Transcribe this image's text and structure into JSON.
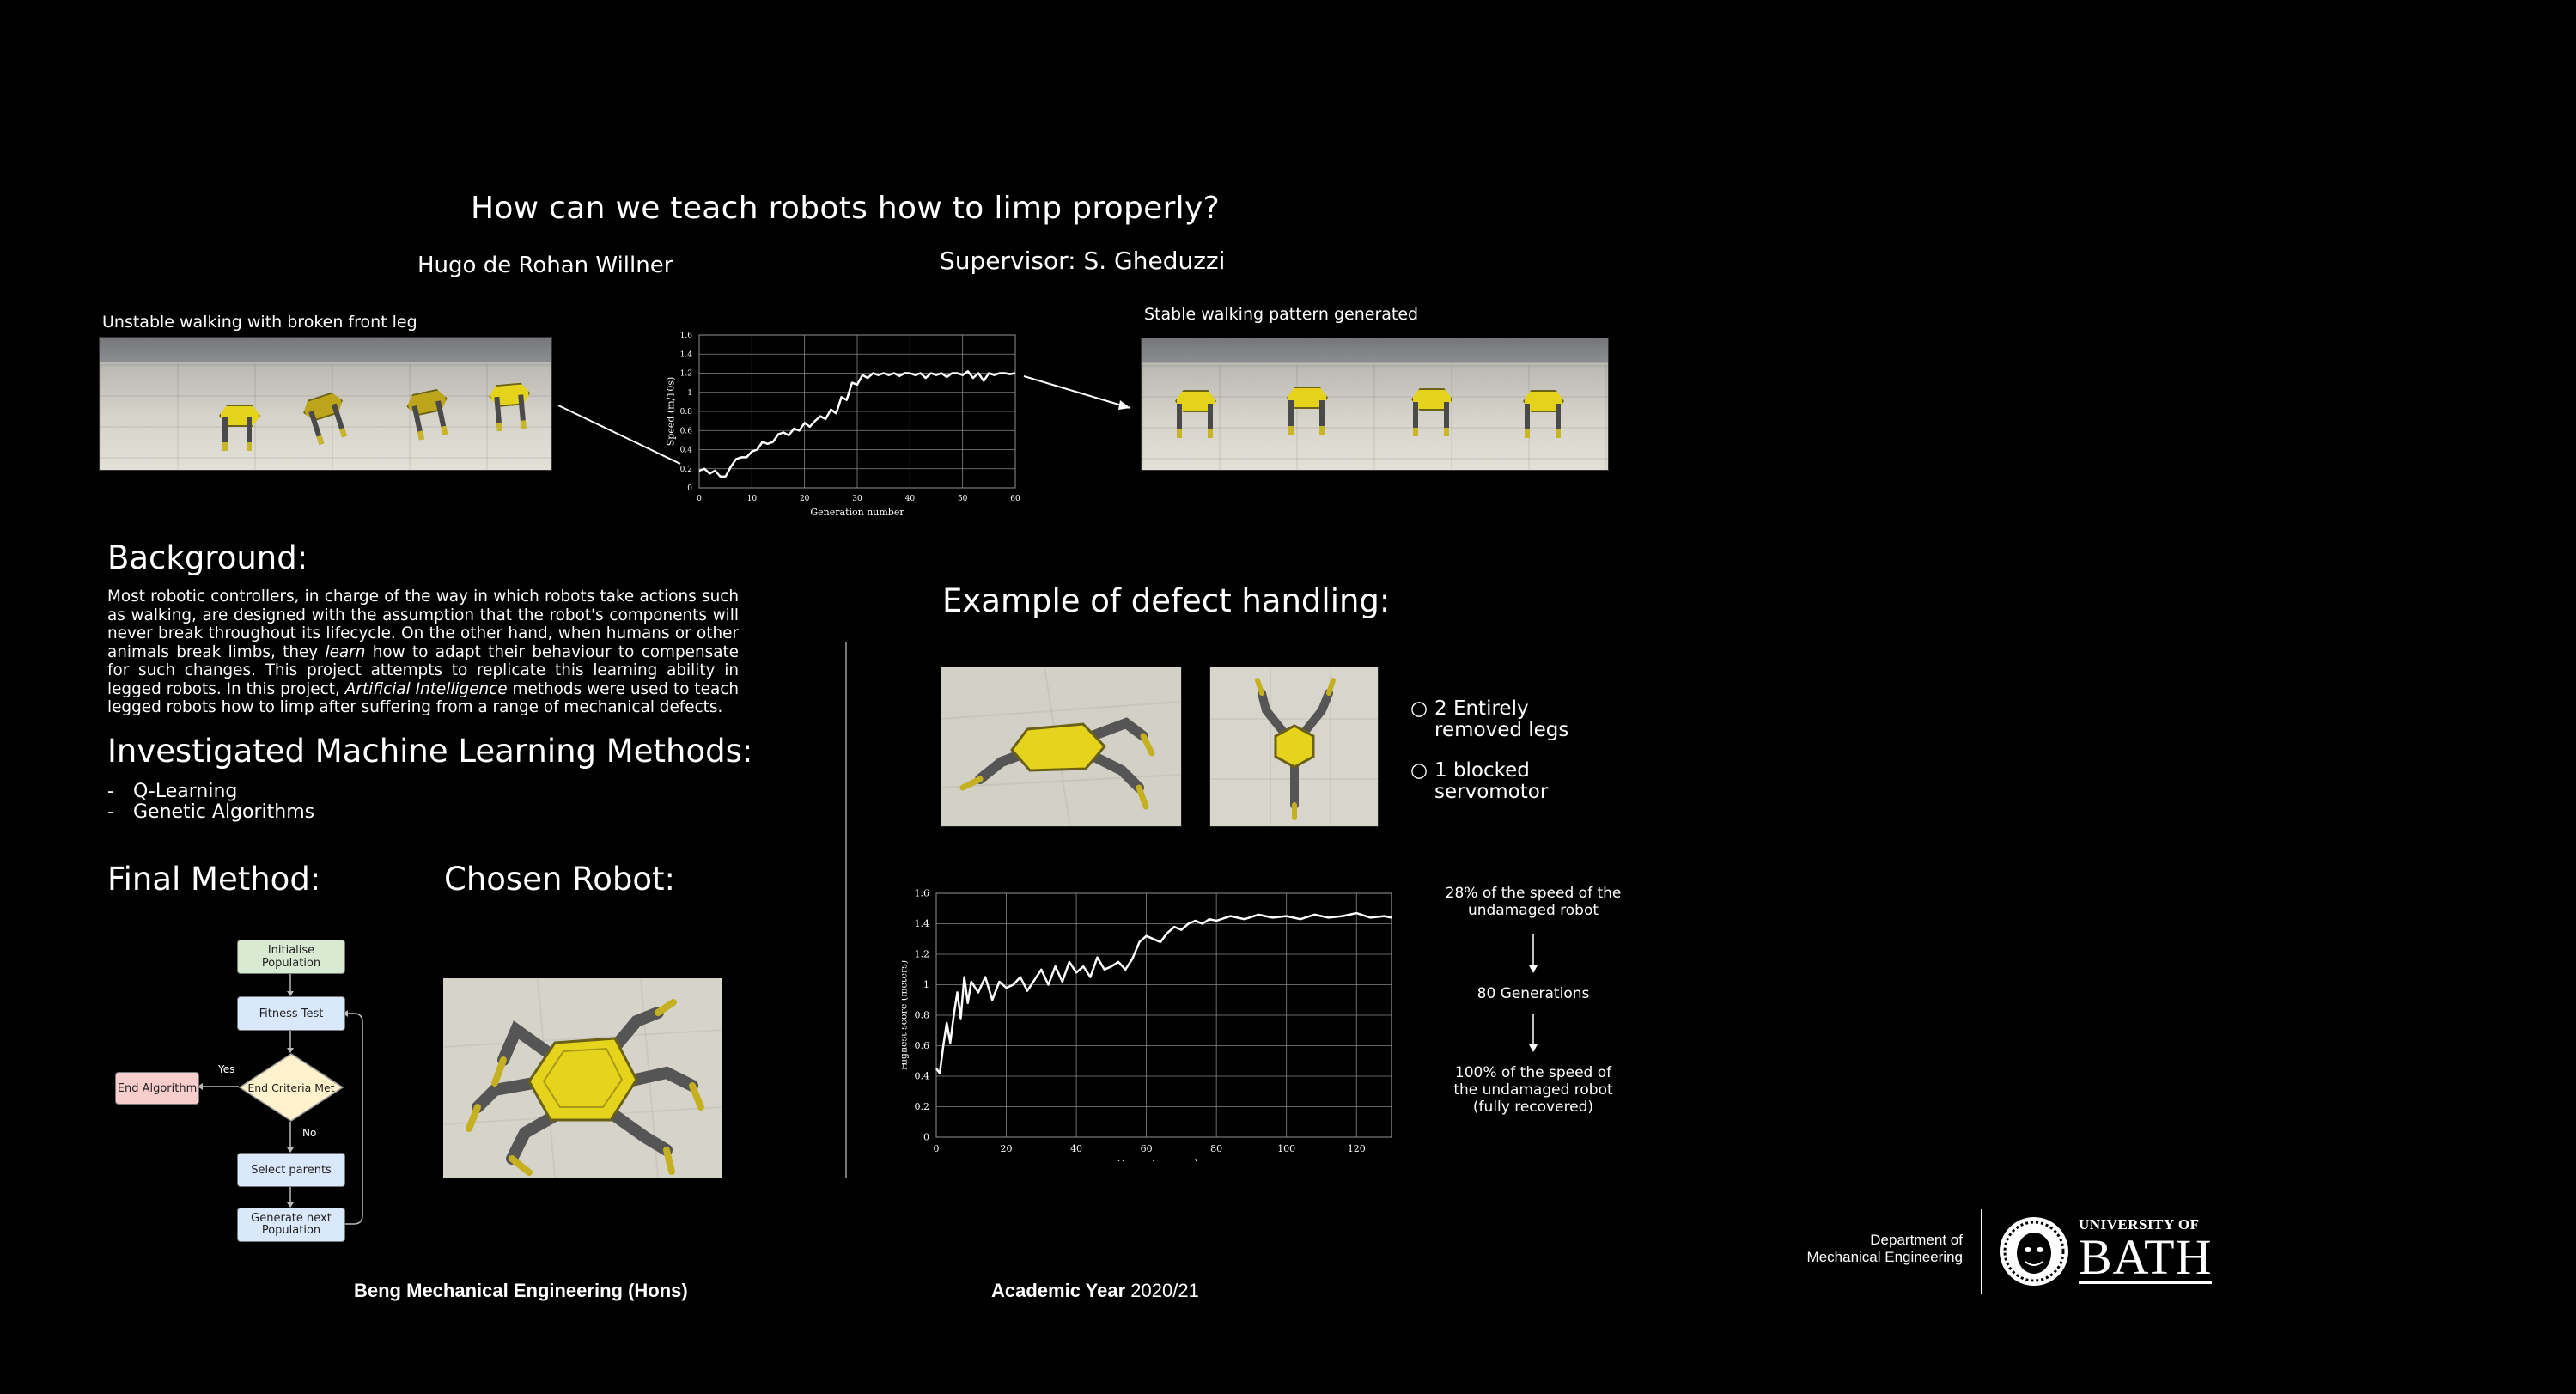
{
  "poster": {
    "title": "How can we teach robots how to limp properly?",
    "author": "Hugo de Rohan Willner",
    "supervisor": "Supervisor: S. Gheduzzi"
  },
  "top_row": {
    "left_caption": "Unstable walking with broken front leg",
    "right_caption": "Stable walking pattern generated"
  },
  "background": {
    "heading": "Background:",
    "text_part1": "Most robotic controllers, in charge of the way in which robots take actions such as walking, are designed with the assumption that the robot's components will never break throughout its lifecycle. On the other hand, when humans or other animals break limbs, they ",
    "text_learn": "learn",
    "text_part2": " how to adapt their behaviour to compensate for such changes. This project attempts to replicate this learning ability in legged robots. In this project, ",
    "text_ai": "Artificial Intelligence",
    "text_part3": " methods were used to teach legged robots how to limp after suffering from a range of mechanical defects."
  },
  "methods": {
    "heading": "Investigated Machine Learning Methods:",
    "items": [
      "Q-Learning",
      "Genetic Algorithms"
    ],
    "bullet": "-"
  },
  "final_method": {
    "heading": "Final Method:",
    "flow": {
      "init": "Initialise Population",
      "fitness": "Fitness Test",
      "criteria": "End Criteria Met",
      "end": "End Algorithm",
      "yes": "Yes",
      "no": "No",
      "select": "Select parents",
      "generate": "Generate next Population"
    },
    "colors": {
      "green": "#d9ead3",
      "blue": "#dae8fc",
      "yellow": "#fff2cc",
      "red": "#f8cecc"
    }
  },
  "chosen_robot": {
    "heading": "Chosen Robot:"
  },
  "defect": {
    "heading": "Example of defect handling:",
    "bullets": [
      "2 Entirely removed legs",
      "1 blocked servomotor"
    ],
    "notes": {
      "first": "28% of the speed of the undamaged robot",
      "middle": "80 Generations",
      "last": "100% of the speed of the undamaged robot (fully recovered)"
    }
  },
  "footer": {
    "degree": "Beng Mechanical Engineering (Hons)",
    "year_label": "Academic Year",
    "year_value": "2020/21",
    "dept_line1": "Department of",
    "dept_line2": "Mechanical Engineering",
    "uni_line1": "UNIVERSITY OF",
    "uni_line2": "BATH"
  },
  "chart_data": [
    {
      "type": "line",
      "xlabel": "Generation number",
      "ylabel": "Speed (m/10s)",
      "xlim": [
        0,
        60
      ],
      "ylim": [
        0,
        1.6
      ],
      "xticks": [
        0,
        10,
        20,
        30,
        40,
        50,
        60
      ],
      "yticks": [
        0,
        0.2,
        0.4,
        0.6,
        0.8,
        1.0,
        1.2,
        1.4,
        1.6
      ],
      "grid": true,
      "x": [
        0,
        1,
        2,
        3,
        4,
        5,
        6,
        7,
        8,
        9,
        10,
        11,
        12,
        13,
        14,
        15,
        16,
        17,
        18,
        19,
        20,
        21,
        22,
        23,
        24,
        25,
        26,
        27,
        28,
        29,
        30,
        31,
        32,
        33,
        34,
        35,
        36,
        37,
        38,
        39,
        40,
        41,
        42,
        43,
        44,
        45,
        46,
        47,
        48,
        49,
        50,
        51,
        52,
        53,
        54,
        55,
        56,
        57,
        58,
        59,
        60
      ],
      "y": [
        0.18,
        0.2,
        0.15,
        0.18,
        0.12,
        0.12,
        0.22,
        0.3,
        0.32,
        0.32,
        0.38,
        0.4,
        0.48,
        0.46,
        0.48,
        0.56,
        0.58,
        0.55,
        0.62,
        0.6,
        0.68,
        0.64,
        0.7,
        0.75,
        0.72,
        0.82,
        0.78,
        0.95,
        0.92,
        1.1,
        1.08,
        1.18,
        1.15,
        1.2,
        1.18,
        1.2,
        1.18,
        1.2,
        1.17,
        1.2,
        1.2,
        1.18,
        1.2,
        1.15,
        1.2,
        1.18,
        1.2,
        1.16,
        1.2,
        1.2,
        1.18,
        1.22,
        1.15,
        1.2,
        1.12,
        1.2,
        1.18,
        1.2,
        1.2,
        1.19,
        1.2
      ]
    },
    {
      "type": "line",
      "xlabel": "Generation number",
      "ylabel": "Highest score (meters)",
      "xlim": [
        0,
        130
      ],
      "ylim": [
        0,
        1.6
      ],
      "xticks": [
        0,
        20,
        40,
        60,
        80,
        100,
        120
      ],
      "yticks": [
        0,
        0.2,
        0.4,
        0.6,
        0.8,
        1,
        1.2,
        1.4,
        1.6
      ],
      "grid": true,
      "x": [
        0,
        1,
        2,
        3,
        4,
        5,
        6,
        7,
        8,
        9,
        10,
        12,
        14,
        16,
        18,
        20,
        22,
        24,
        26,
        28,
        30,
        32,
        34,
        36,
        38,
        40,
        42,
        44,
        46,
        48,
        50,
        52,
        54,
        56,
        58,
        60,
        62,
        64,
        66,
        68,
        70,
        72,
        74,
        76,
        78,
        80,
        84,
        88,
        92,
        96,
        100,
        104,
        108,
        112,
        116,
        120,
        124,
        128,
        130
      ],
      "y": [
        0.45,
        0.42,
        0.6,
        0.75,
        0.62,
        0.8,
        0.95,
        0.78,
        1.05,
        0.88,
        1.02,
        0.95,
        1.05,
        0.9,
        1.02,
        0.98,
        1.0,
        1.05,
        0.96,
        1.03,
        1.1,
        1.0,
        1.12,
        1.02,
        1.15,
        1.08,
        1.12,
        1.05,
        1.18,
        1.1,
        1.12,
        1.15,
        1.1,
        1.17,
        1.28,
        1.32,
        1.3,
        1.28,
        1.34,
        1.38,
        1.36,
        1.4,
        1.42,
        1.4,
        1.43,
        1.42,
        1.45,
        1.43,
        1.46,
        1.44,
        1.45,
        1.43,
        1.46,
        1.44,
        1.45,
        1.47,
        1.44,
        1.45,
        1.44
      ]
    }
  ]
}
